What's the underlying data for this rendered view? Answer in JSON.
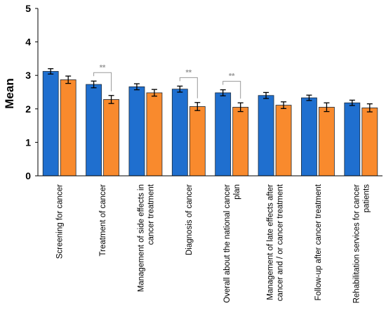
{
  "chart_data": {
    "type": "bar",
    "title": "",
    "xlabel": "",
    "ylabel": "Mean",
    "ylim": [
      0,
      5
    ],
    "yticks": [
      0,
      1,
      2,
      3,
      4,
      5
    ],
    "grid": false,
    "legend": "none",
    "categories": [
      [
        "Screening for cancer"
      ],
      [
        "Treatment of cancer"
      ],
      [
        "Management of side effects in",
        "cancer treatment"
      ],
      [
        "Diagnosis of cancer"
      ],
      [
        "Overall about the national cancer",
        "plan"
      ],
      [
        "Management of late effects after",
        "cancer and / or cancer treatment"
      ],
      [
        "Follow-up after cancer treatment"
      ],
      [
        "Rehabilitation services for cancer",
        "patients"
      ]
    ],
    "series": [
      {
        "color": "#1f6fcf",
        "values": [
          3.12,
          2.73,
          2.66,
          2.59,
          2.48,
          2.4,
          2.33,
          2.18
        ],
        "errors": [
          0.08,
          0.1,
          0.09,
          0.09,
          0.09,
          0.09,
          0.08,
          0.08
        ]
      },
      {
        "color": "#f98a2d",
        "values": [
          2.87,
          2.28,
          2.48,
          2.07,
          2.05,
          2.11,
          2.05,
          2.03
        ],
        "errors": [
          0.11,
          0.12,
          0.1,
          0.12,
          0.13,
          0.1,
          0.13,
          0.12
        ]
      }
    ],
    "significance": [
      {
        "category_index": 1,
        "label": "**"
      },
      {
        "category_index": 3,
        "label": "**"
      },
      {
        "category_index": 4,
        "label": "**"
      }
    ]
  }
}
